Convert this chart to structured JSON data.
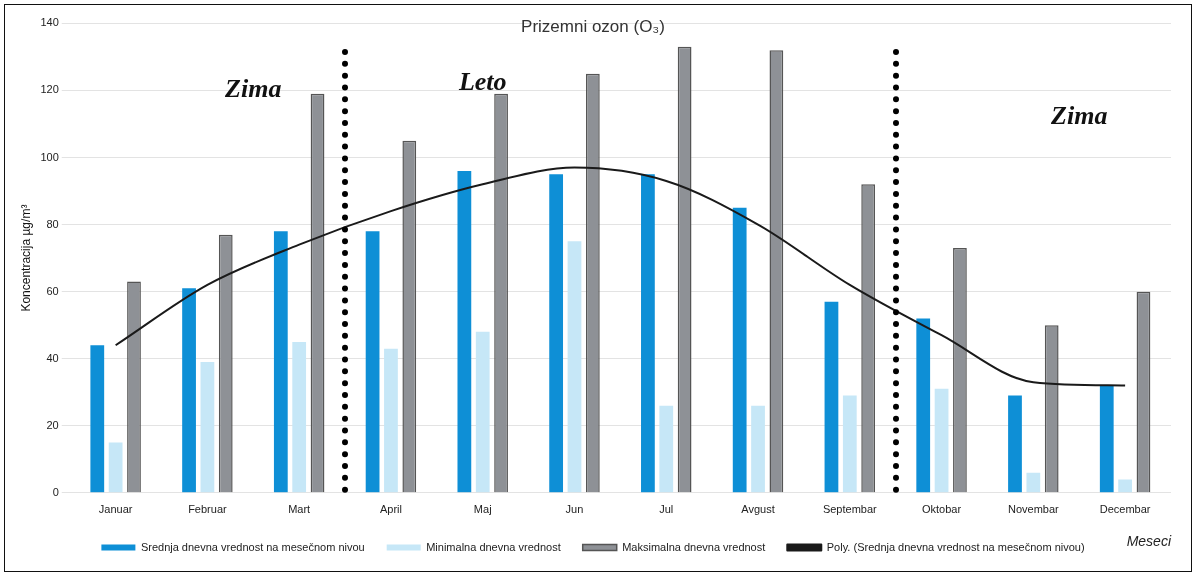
{
  "chart_data": {
    "type": "bar",
    "title": "Prizemni ozon (O₃)",
    "ylabel": "Koncentracija µg/m³",
    "xlabel": "Meseci",
    "categories": [
      "Januar",
      "Februar",
      "Mart",
      "April",
      "Maj",
      "Jun",
      "Jul",
      "Avgust",
      "Septembar",
      "Oktobar",
      "Novembar",
      "Decembar"
    ],
    "series": [
      {
        "name": "Srednja dnevna vrednost na mesečnom nivou",
        "color": "#0e8fd6",
        "values": [
          44,
          61,
          78,
          78,
          96,
          95,
          95,
          85,
          57,
          52,
          29,
          32
        ]
      },
      {
        "name": "Minimalna dnevna vrednost",
        "color": "#c6e7f7",
        "values": [
          15,
          39,
          45,
          43,
          48,
          75,
          26,
          26,
          29,
          31,
          6,
          4
        ]
      },
      {
        "name": "Maksimalna dnevna vrednost",
        "color": "#8e9196",
        "values": [
          63,
          77,
          119,
          105,
          119,
          125,
          133,
          132,
          92,
          73,
          50,
          60
        ]
      },
      {
        "name": "Poly. (Srednja dnevna vrednost na mesečnom nivou)",
        "type": "line",
        "color": "#1a1a1a",
        "values": [
          44,
          62,
          74,
          84,
          92,
          97,
          93,
          80,
          62,
          47,
          33,
          32
        ]
      }
    ],
    "ylim": [
      0,
      140
    ],
    "yticks": [
      0,
      20,
      40,
      60,
      80,
      100,
      120,
      140
    ],
    "grid": "y",
    "legend": "bottom",
    "marker": "none",
    "annotations": [
      "Zima",
      "Leto",
      "Zima"
    ]
  }
}
